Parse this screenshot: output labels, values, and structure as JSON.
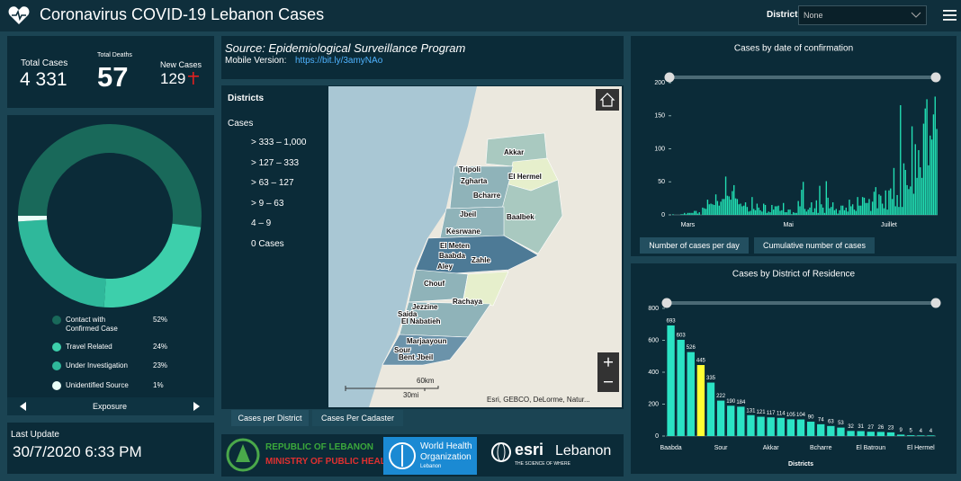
{
  "header": {
    "title": "Coronavirus COVID-19 Lebanon Cases",
    "district_label": "District",
    "district_value": "None"
  },
  "summary": {
    "total_cases": {
      "label": "Total Cases",
      "value": "4 331"
    },
    "total_deaths": {
      "label": "Total Deaths",
      "value": 57
    },
    "new_cases": {
      "label": "New Cases",
      "value": 129
    }
  },
  "exposure_chart": {
    "type": "donut",
    "title": "Exposure",
    "categories": [
      "Contact with Confirmed Case",
      "Travel Related",
      "Under Investigation",
      "Unidentified Source"
    ],
    "values": [
      52,
      24,
      23,
      1
    ],
    "value_labels": [
      "52%",
      "24%",
      "23%",
      "1%"
    ],
    "colors": [
      "#19695a",
      "#3dcfab",
      "#2fb89b",
      "#eafff8"
    ]
  },
  "last_update": {
    "label": "Last Update",
    "value": "30/7/2020 6:33 PM"
  },
  "source": {
    "text": "Source: Epidemiological Surveillance Program",
    "mobile_label": "Mobile Version:",
    "mobile_link": "https://bit.ly/3amyNAo"
  },
  "map": {
    "legend_title": "Districts",
    "legend_subtitle": "Cases",
    "classes": [
      {
        "label": "> 333 – 1,000",
        "color": "#4d7a96"
      },
      {
        "label": "> 127 – 333",
        "color": "#6b93aa"
      },
      {
        "label": "> 63 – 127",
        "color": "#8fb3b9"
      },
      {
        "label": "> 9 – 63",
        "color": "#a9c9c0"
      },
      {
        "label": "4 – 9",
        "color": "#e6efcc"
      },
      {
        "label": "0 Cases",
        "color": "#ffffff"
      }
    ],
    "districts": [
      "Akkar",
      "Tripoli",
      "Zgharta",
      "El Hermel",
      "Bcharre",
      "Jbeil",
      "Baalbek",
      "Kesrwane",
      "El Meten",
      "Baabda",
      "Zahle",
      "Aley",
      "Chouf",
      "Rachaya",
      "Jezzine",
      "Saida",
      "El Nabatieh",
      "Marjaayoun",
      "Sour",
      "Bent Jbeil"
    ],
    "scale_km": "60km",
    "scale_mi": "30mi",
    "attribution": "Esri, GEBCO, DeLorme, Natur...",
    "tabs": [
      "Cases per District",
      "Cases Per Cadaster"
    ]
  },
  "logos": {
    "moph_line1": "REPUBLIC OF LEBANON",
    "moph_line2": "MINISTRY OF PUBLIC HEALTH",
    "who_line1": "World Health",
    "who_line2": "Organization",
    "who_line3": "Lebanon",
    "esri_name": "esri",
    "esri_country": "Lebanon",
    "esri_tagline": "THE SCIENCE OF WHERE"
  },
  "cases_by_date": {
    "type": "bar",
    "title": "Cases by  date of confirmation",
    "color": "#22e0b4",
    "categories": [
      null,
      null,
      null,
      null,
      null,
      null,
      null,
      null,
      null,
      "Mars",
      null,
      null,
      null,
      null,
      null,
      null,
      null,
      null,
      null,
      null,
      null,
      null,
      null,
      null,
      null,
      null,
      null,
      null,
      null,
      null,
      null,
      null,
      null,
      null,
      null,
      null,
      null,
      null,
      null,
      null,
      null,
      null,
      null,
      null,
      null,
      null,
      null,
      null,
      null,
      null,
      null,
      null,
      null,
      null,
      null,
      null,
      null,
      null,
      null,
      null,
      null,
      null,
      null,
      null,
      null,
      null,
      null,
      null,
      null,
      null,
      "Mai",
      null,
      null,
      null,
      null,
      null,
      null,
      null,
      null,
      null,
      null,
      null,
      null,
      null,
      null,
      null,
      null,
      null,
      null,
      null,
      null,
      null,
      null,
      null,
      null,
      null,
      null,
      null,
      null,
      null,
      null,
      null,
      null,
      null,
      null,
      null,
      null,
      null,
      null,
      null,
      null,
      null,
      null,
      null,
      null,
      null,
      null,
      null,
      null,
      null,
      null,
      null,
      null,
      null,
      null,
      null,
      null,
      null,
      null,
      null,
      null,
      "Juillet",
      null,
      null,
      null,
      null,
      null,
      null,
      null,
      null,
      null,
      null,
      null,
      null,
      null,
      null,
      null,
      null,
      null,
      null,
      null,
      null,
      null,
      null,
      null,
      null,
      null,
      null,
      null,
      null,
      null
    ],
    "values": [
      1,
      0,
      0,
      0,
      0,
      1,
      1,
      3,
      1,
      3,
      3,
      3,
      3,
      6,
      6,
      2,
      4,
      0,
      11,
      10,
      9,
      23,
      16,
      17,
      16,
      15,
      31,
      21,
      14,
      20,
      24,
      24,
      58,
      29,
      28,
      23,
      36,
      45,
      25,
      24,
      16,
      17,
      13,
      14,
      19,
      12,
      5,
      6,
      27,
      9,
      7,
      17,
      11,
      7,
      5,
      17,
      15,
      3,
      5,
      4,
      15,
      8,
      13,
      13,
      14,
      6,
      7,
      18,
      4,
      4,
      8,
      8,
      1,
      4,
      3,
      3,
      21,
      13,
      38,
      50,
      9,
      5,
      8,
      11,
      19,
      4,
      10,
      22,
      3,
      44,
      16,
      11,
      3,
      51,
      26,
      10,
      12,
      19,
      7,
      9,
      2,
      7,
      14,
      14,
      7,
      11,
      5,
      23,
      13,
      16,
      8,
      6,
      27,
      14,
      14,
      27,
      26,
      18,
      18,
      24,
      6,
      20,
      35,
      42,
      10,
      31,
      29,
      17,
      10,
      37,
      8,
      37,
      40,
      24,
      71,
      13,
      30,
      12,
      166,
      12,
      78,
      68,
      45,
      39,
      43,
      134,
      32,
      107,
      56,
      98,
      72,
      56,
      138,
      161,
      175,
      75,
      120,
      114,
      152,
      179,
      130
    ],
    "ylim": [
      0,
      200
    ],
    "yticks": [
      0,
      50,
      100,
      150,
      200
    ],
    "tabs": [
      "Number of cases per day",
      "Cumulative number of cases"
    ]
  },
  "cases_by_district": {
    "type": "bar",
    "title": "Cases by District of Residence",
    "x_label": "Districts",
    "categories": [
      "Baabda",
      null,
      null,
      null,
      null,
      "Sour",
      null,
      null,
      null,
      null,
      "Akkar",
      null,
      null,
      null,
      null,
      "Bcharre",
      null,
      null,
      null,
      null,
      "El Batroun",
      null,
      null,
      null,
      null,
      "El Hermel",
      null
    ],
    "values": [
      693,
      603,
      526,
      445,
      335,
      222,
      190,
      184,
      131,
      121,
      117,
      114,
      105,
      104,
      90,
      74,
      63,
      53,
      32,
      31,
      27,
      26,
      23,
      9,
      5,
      4,
      4
    ],
    "colors": [
      "#2be3c4",
      "#2be3c4",
      "#2be3c4",
      "#ffff33",
      "#2be3c4",
      "#2be3c4",
      "#2be3c4",
      "#2be3c4",
      "#2be3c4",
      "#2be3c4",
      "#2be3c4",
      "#2be3c4",
      "#2be3c4",
      "#2be3c4",
      "#2be3c4",
      "#2be3c4",
      "#2be3c4",
      "#2be3c4",
      "#2be3c4",
      "#2be3c4",
      "#2be3c4",
      "#2be3c4",
      "#2be3c4",
      "#2be3c4",
      "#2be3c4",
      "#2be3c4",
      "#2be3c4"
    ],
    "ylim": [
      0,
      800
    ],
    "yticks": [
      0,
      200,
      400,
      600,
      800
    ]
  }
}
